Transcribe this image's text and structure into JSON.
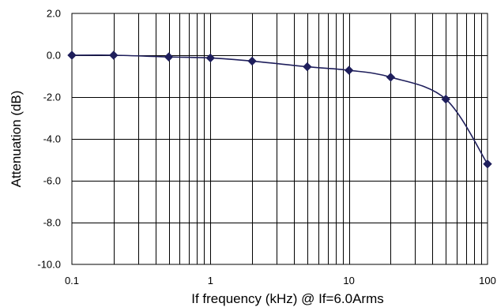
{
  "chart_data": {
    "type": "line",
    "title": "",
    "xlabel": "If frequency (kHz) @ If=6.0Arms",
    "ylabel": "Attenuation (dB)",
    "x_scale": "log",
    "xlim": [
      0.1,
      100
    ],
    "ylim": [
      -10,
      2
    ],
    "x_ticks": [
      "0.1",
      "1",
      "10",
      "100"
    ],
    "y_ticks": [
      "2.0",
      "0.0",
      "-2.0",
      "-4.0",
      "-6.0",
      "-8.0",
      "-10.0"
    ],
    "grid": true,
    "legend": "none",
    "series": [
      {
        "color": "#1f1f5c",
        "marker": "diamond",
        "x": [
          0.1,
          0.2,
          0.5,
          1,
          2,
          5,
          10,
          20,
          50,
          100
        ],
        "y": [
          0.0,
          0.0,
          -0.08,
          -0.13,
          -0.28,
          -0.55,
          -0.72,
          -1.05,
          -2.1,
          -5.2
        ]
      }
    ]
  }
}
